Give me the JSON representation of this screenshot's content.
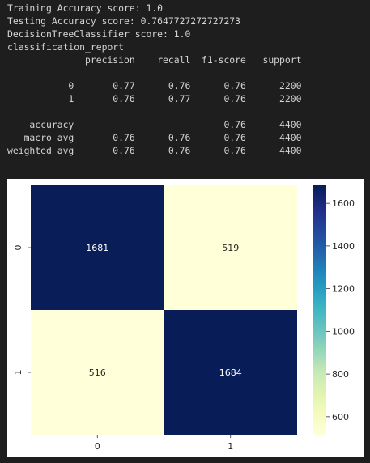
{
  "console": {
    "lines": [
      "Training Accuracy score: 1.0",
      "Testing Accuracy score: 0.7647727272727273",
      "DecisionTreeClassifier score: 1.0",
      "classification_report",
      "              precision    recall  f1-score   support",
      "",
      "           0       0.77      0.76      0.76      2200",
      "           1       0.76      0.77      0.76      2200",
      "",
      "    accuracy                           0.76      4400",
      "   macro avg       0.76      0.76      0.76      4400",
      "weighted avg       0.76      0.76      0.76      4400"
    ]
  },
  "chart_data": {
    "type": "heatmap",
    "title": "",
    "xlabel": "",
    "ylabel": "",
    "x_tick_labels": [
      "0",
      "1"
    ],
    "y_tick_labels": [
      "0",
      "1"
    ],
    "matrix": [
      [
        1681,
        519
      ],
      [
        516,
        1684
      ]
    ],
    "colormap": "YlGnBu",
    "color_range": [
      516,
      1684
    ],
    "colorbar_ticks": [
      600,
      800,
      1000,
      1200,
      1400,
      1600
    ],
    "annotated": true
  }
}
